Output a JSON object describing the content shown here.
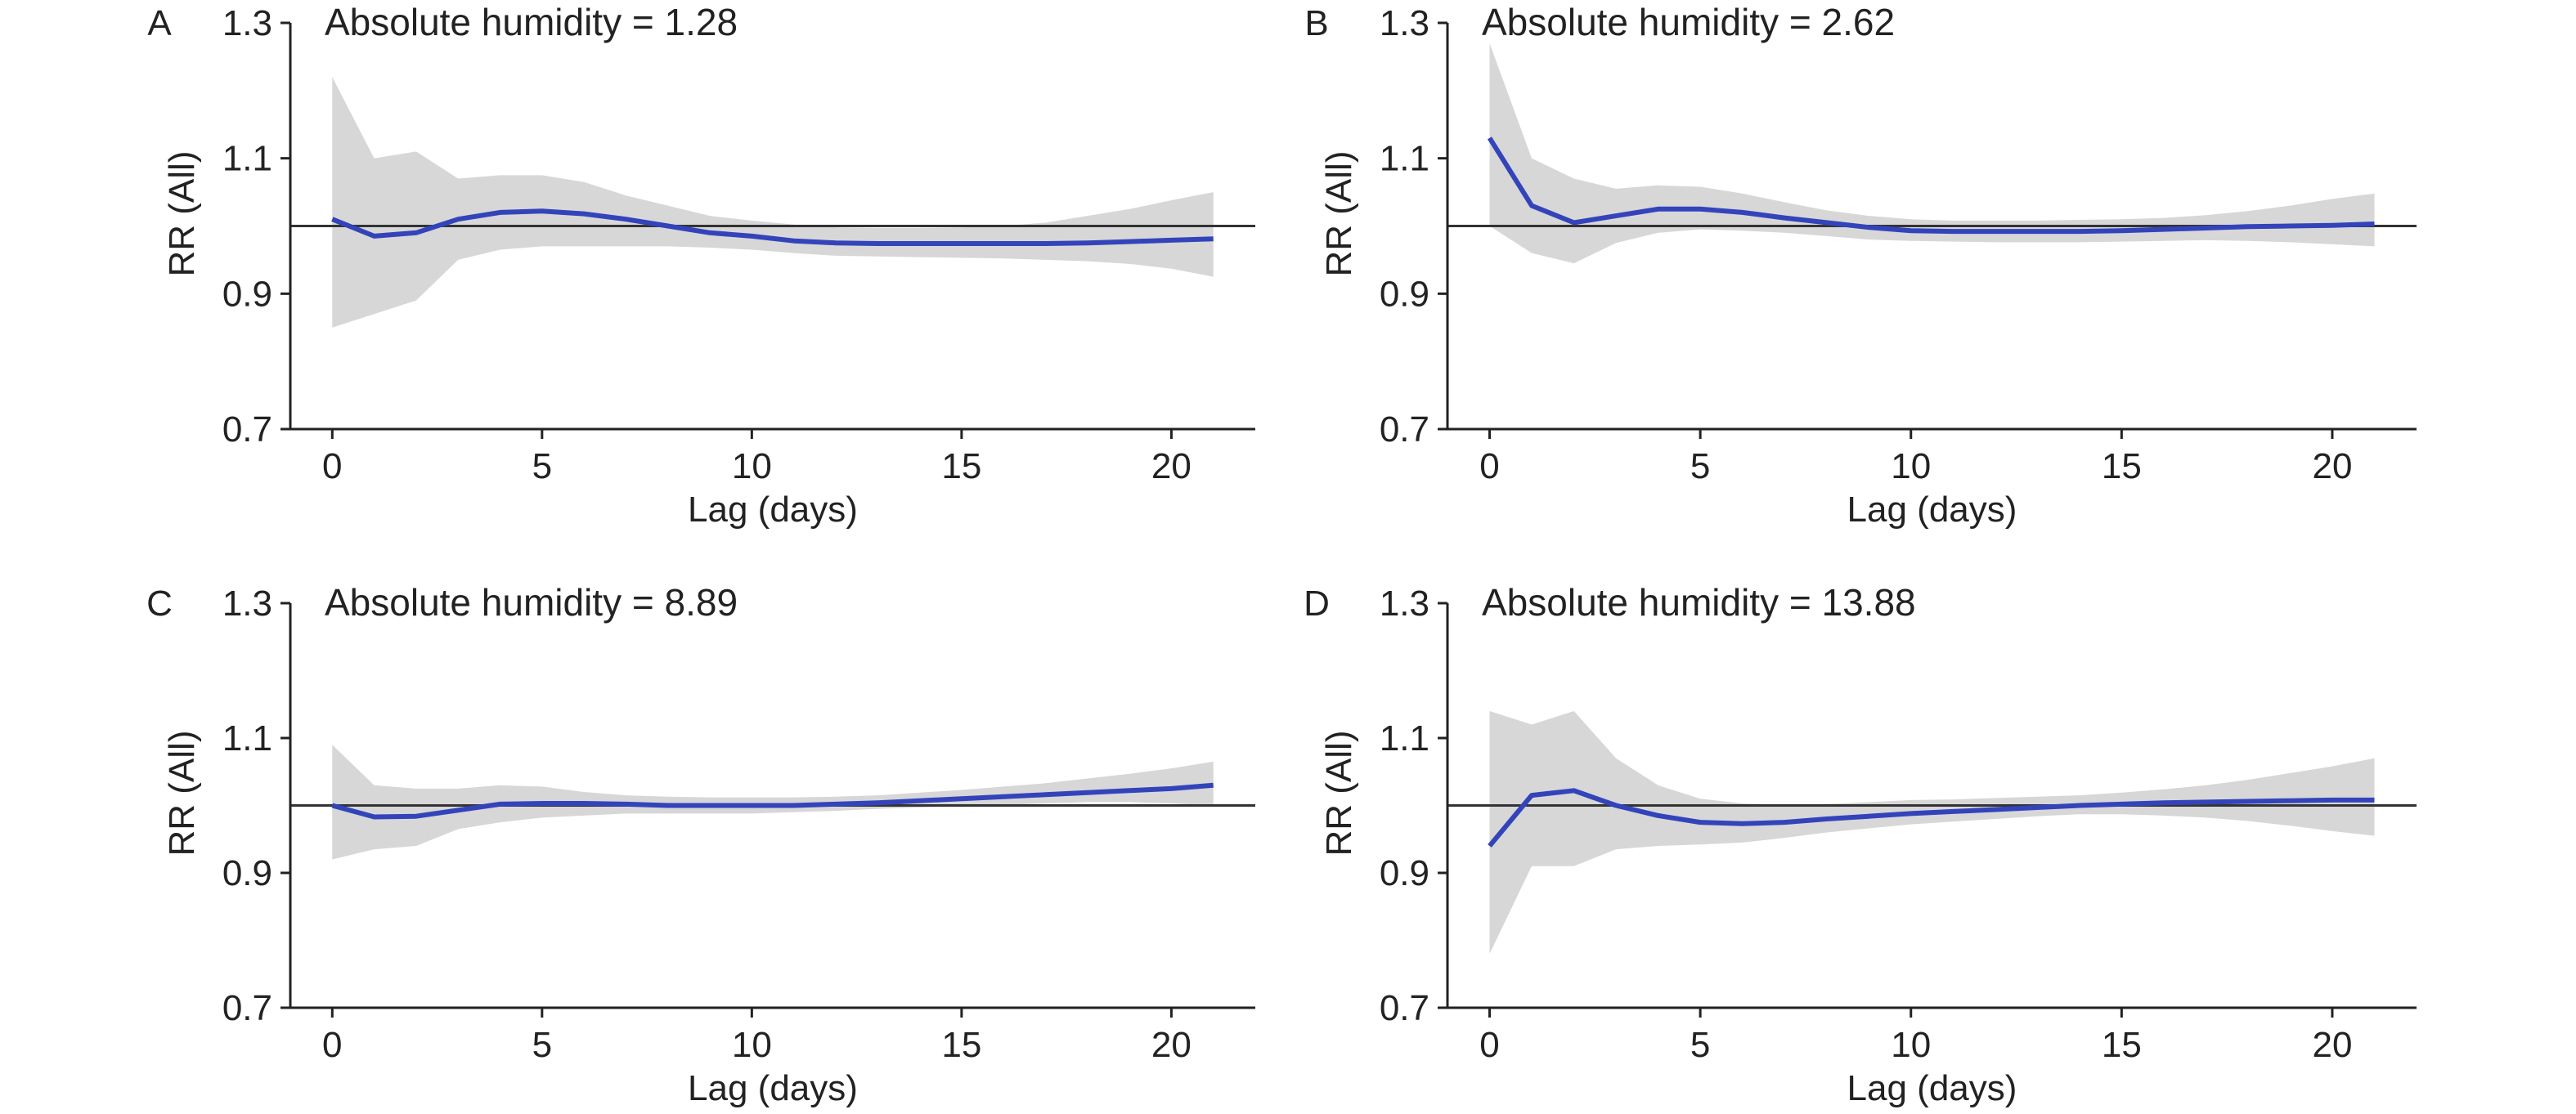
{
  "chart_data": [
    {
      "type": "line",
      "panel": "A",
      "title": "Absolute humidity = 1.28",
      "xlabel": "Lag (days)",
      "ylabel": "RR (All)",
      "xlim": [
        -1,
        22
      ],
      "ylim": [
        0.7,
        1.3
      ],
      "x_ticks": [
        0,
        5,
        10,
        15,
        20
      ],
      "y_ticks": [
        0.7,
        0.9,
        1.1,
        1.3
      ],
      "reference_y": 1.0,
      "grid": false,
      "series": [
        {
          "x": [
            0,
            1,
            2,
            3,
            4,
            5,
            6,
            7,
            8,
            9,
            10,
            11,
            12,
            13,
            14,
            15,
            16,
            17,
            18,
            19,
            20,
            21
          ],
          "y": [
            1.01,
            0.985,
            0.99,
            1.01,
            1.02,
            1.022,
            1.018,
            1.01,
            1.0,
            0.99,
            0.985,
            0.978,
            0.975,
            0.974,
            0.974,
            0.974,
            0.974,
            0.974,
            0.975,
            0.977,
            0.979,
            0.981
          ],
          "lower": [
            0.85,
            0.87,
            0.89,
            0.95,
            0.965,
            0.97,
            0.97,
            0.97,
            0.97,
            0.968,
            0.965,
            0.96,
            0.956,
            0.955,
            0.954,
            0.953,
            0.952,
            0.95,
            0.948,
            0.944,
            0.937,
            0.925
          ],
          "upper": [
            1.22,
            1.1,
            1.11,
            1.07,
            1.075,
            1.075,
            1.065,
            1.045,
            1.03,
            1.015,
            1.008,
            1.002,
            0.998,
            0.997,
            0.997,
            0.998,
            1.0,
            1.005,
            1.015,
            1.025,
            1.038,
            1.05
          ]
        }
      ]
    },
    {
      "type": "line",
      "panel": "B",
      "title": "Absolute humidity = 2.62",
      "xlabel": "Lag (days)",
      "ylabel": "RR (All)",
      "xlim": [
        -1,
        22
      ],
      "ylim": [
        0.7,
        1.3
      ],
      "x_ticks": [
        0,
        5,
        10,
        15,
        20
      ],
      "y_ticks": [
        0.7,
        0.9,
        1.1,
        1.3
      ],
      "reference_y": 1.0,
      "grid": false,
      "series": [
        {
          "x": [
            0,
            1,
            2,
            3,
            4,
            5,
            6,
            7,
            8,
            9,
            10,
            11,
            12,
            13,
            14,
            15,
            16,
            17,
            18,
            19,
            20,
            21
          ],
          "y": [
            1.13,
            1.03,
            1.005,
            1.015,
            1.025,
            1.025,
            1.02,
            1.012,
            1.005,
            0.998,
            0.993,
            0.992,
            0.992,
            0.992,
            0.992,
            0.993,
            0.995,
            0.997,
            0.999,
            1.0,
            1.001,
            1.003
          ],
          "lower": [
            1.0,
            0.96,
            0.945,
            0.975,
            0.99,
            0.995,
            0.993,
            0.99,
            0.985,
            0.98,
            0.978,
            0.977,
            0.976,
            0.976,
            0.976,
            0.977,
            0.978,
            0.979,
            0.978,
            0.976,
            0.973,
            0.97
          ],
          "upper": [
            1.27,
            1.1,
            1.07,
            1.055,
            1.06,
            1.058,
            1.048,
            1.035,
            1.023,
            1.015,
            1.01,
            1.008,
            1.008,
            1.008,
            1.009,
            1.01,
            1.012,
            1.016,
            1.022,
            1.03,
            1.04,
            1.048
          ]
        }
      ]
    },
    {
      "type": "line",
      "panel": "C",
      "title": "Absolute humidity = 8.89",
      "xlabel": "Lag (days)",
      "ylabel": "RR (All)",
      "xlim": [
        -1,
        22
      ],
      "ylim": [
        0.7,
        1.3
      ],
      "x_ticks": [
        0,
        5,
        10,
        15,
        20
      ],
      "y_ticks": [
        0.7,
        0.9,
        1.1,
        1.3
      ],
      "reference_y": 1.0,
      "grid": false,
      "series": [
        {
          "x": [
            0,
            1,
            2,
            3,
            4,
            5,
            6,
            7,
            8,
            9,
            10,
            11,
            12,
            13,
            14,
            15,
            16,
            17,
            18,
            19,
            20,
            21
          ],
          "y": [
            1.0,
            0.983,
            0.984,
            0.993,
            1.002,
            1.003,
            1.003,
            1.002,
            1.0,
            1.0,
            1.0,
            1.0,
            1.002,
            1.004,
            1.007,
            1.01,
            1.013,
            1.016,
            1.019,
            1.022,
            1.025,
            1.03
          ],
          "lower": [
            0.92,
            0.935,
            0.94,
            0.965,
            0.975,
            0.982,
            0.985,
            0.988,
            0.988,
            0.988,
            0.988,
            0.99,
            0.992,
            0.995,
            0.997,
            0.999,
            1.001,
            1.003,
            1.005,
            1.005,
            1.003,
            1.0
          ],
          "upper": [
            1.09,
            1.03,
            1.025,
            1.025,
            1.03,
            1.028,
            1.02,
            1.015,
            1.013,
            1.012,
            1.012,
            1.012,
            1.013,
            1.015,
            1.019,
            1.023,
            1.028,
            1.033,
            1.04,
            1.047,
            1.055,
            1.065
          ]
        }
      ]
    },
    {
      "type": "line",
      "panel": "D",
      "title": "Absolute humidity = 13.88",
      "xlabel": "Lag (days)",
      "ylabel": "RR (All)",
      "xlim": [
        -1,
        22
      ],
      "ylim": [
        0.7,
        1.3
      ],
      "x_ticks": [
        0,
        5,
        10,
        15,
        20
      ],
      "y_ticks": [
        0.7,
        0.9,
        1.1,
        1.3
      ],
      "reference_y": 1.0,
      "grid": false,
      "series": [
        {
          "x": [
            0,
            1,
            2,
            3,
            4,
            5,
            6,
            7,
            8,
            9,
            10,
            11,
            12,
            13,
            14,
            15,
            16,
            17,
            18,
            19,
            20,
            21
          ],
          "y": [
            0.94,
            1.015,
            1.022,
            1.0,
            0.985,
            0.975,
            0.973,
            0.975,
            0.98,
            0.984,
            0.988,
            0.991,
            0.994,
            0.997,
            1.0,
            1.002,
            1.004,
            1.005,
            1.006,
            1.007,
            1.008,
            1.008
          ],
          "lower": [
            0.78,
            0.91,
            0.91,
            0.935,
            0.94,
            0.942,
            0.945,
            0.952,
            0.96,
            0.966,
            0.972,
            0.976,
            0.98,
            0.984,
            0.987,
            0.987,
            0.985,
            0.982,
            0.977,
            0.97,
            0.962,
            0.955
          ],
          "upper": [
            1.14,
            1.12,
            1.14,
            1.07,
            1.03,
            1.01,
            1.003,
            1.0,
            1.002,
            1.005,
            1.008,
            1.009,
            1.011,
            1.013,
            1.015,
            1.019,
            1.024,
            1.03,
            1.038,
            1.048,
            1.058,
            1.07
          ]
        }
      ]
    }
  ],
  "colors": {
    "rr_line": "#3344bb",
    "ci_band": "#d0d0d0",
    "reference_line": "#333333",
    "axis": "#222222"
  }
}
